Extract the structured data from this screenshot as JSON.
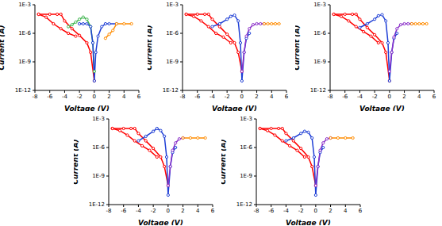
{
  "chart_data": [
    {
      "type": "line",
      "xlabel": "Voltage (V)",
      "ylabel": "Current (A)",
      "log": "y",
      "xlim": [
        -8,
        6
      ],
      "xticks": [
        -8,
        -6,
        -4,
        -2,
        0,
        2,
        4,
        6
      ],
      "ylim": [
        1e-12,
        0.001
      ],
      "yticks": [
        {
          "value": 1e-12,
          "label": "1E-12"
        },
        {
          "value": 1e-09,
          "label": "1E-9"
        },
        {
          "value": 1e-06,
          "label": "1E-6"
        },
        {
          "value": 0.001,
          "label": "1E-3"
        }
      ],
      "marker": "circle",
      "series": [
        {
          "color": "#ff0000",
          "x": [
            -7.5,
            -6,
            -5,
            -4.5,
            -4,
            -3,
            -2,
            -1,
            -0.5,
            0
          ],
          "values": [
            0.0001,
            0.0001,
            0.0001,
            0.0001,
            2e-05,
            3e-06,
            6e-07,
            1e-07,
            1e-08,
            1e-11
          ]
        },
        {
          "color": "#ff0000",
          "x": [
            -7.5,
            -6.5,
            -5.5,
            -4.5,
            -3.5,
            -2.5
          ],
          "values": [
            0.0001,
            5e-05,
            1e-05,
            3e-06,
            1e-06,
            5e-07
          ]
        },
        {
          "color": "#3cb44b",
          "x": [
            -3.5,
            -3,
            -2.5,
            -2,
            -1.5,
            -1,
            -0.5,
            -0.2,
            0
          ],
          "values": [
            5e-06,
            8e-06,
            1.5e-05,
            3e-05,
            5e-05,
            3e-05,
            5e-06,
            1e-07,
            1e-10
          ]
        },
        {
          "color": "#1f3fd6",
          "x": [
            -2,
            -1.5,
            -1,
            -0.5,
            -0.2,
            0,
            0.2,
            0.5,
            1,
            1.5,
            2,
            3
          ],
          "values": [
            1e-05,
            1e-05,
            1e-05,
            5e-06,
            1e-07,
            1e-11,
            1e-08,
            5e-07,
            5e-06,
            1e-05,
            1e-05,
            1e-05
          ]
        },
        {
          "color": "#ff8c00",
          "x": [
            1.5,
            2,
            2.5,
            3,
            4,
            5
          ],
          "values": [
            3e-07,
            8e-07,
            2e-06,
            1e-05,
            1e-05,
            1e-05
          ]
        }
      ]
    },
    {
      "type": "line",
      "xlabel": "Voltage (V)",
      "ylabel": "Current (A)",
      "log": "y",
      "xlim": [
        -8,
        6
      ],
      "xticks": [
        -8,
        -6,
        -4,
        -2,
        0,
        2,
        4,
        6
      ],
      "ylim": [
        1e-12,
        0.001
      ],
      "yticks": [
        {
          "value": 1e-12,
          "label": "1E-12"
        },
        {
          "value": 1e-09,
          "label": "1E-9"
        },
        {
          "value": 1e-06,
          "label": "1E-6"
        },
        {
          "value": 0.001,
          "label": "1E-3"
        }
      ],
      "marker": "circle",
      "series": [
        {
          "color": "#ff0000",
          "x": [
            -7.5,
            -6,
            -5,
            -4.5,
            -4,
            -3,
            -2,
            -1,
            -0.5,
            0
          ],
          "values": [
            0.0001,
            0.0001,
            0.0001,
            0.0001,
            3e-05,
            5e-06,
            8e-07,
            1e-07,
            1e-08,
            1e-10
          ]
        },
        {
          "color": "#ff0000",
          "x": [
            -7.5,
            -6.5,
            -5.5,
            -4.5,
            -3.5,
            -2.5,
            -1.5
          ],
          "values": [
            0.0001,
            6e-05,
            2e-05,
            5e-06,
            1e-06,
            4e-07,
            1e-07
          ]
        },
        {
          "color": "#1f3fd6",
          "x": [
            -4,
            -3,
            -2,
            -1.5,
            -1,
            -0.5,
            -0.2,
            0,
            0.3,
            0.6,
            1
          ],
          "values": [
            5e-06,
            1e-05,
            3e-05,
            6e-05,
            8e-05,
            2e-05,
            1e-07,
            1e-11,
            1e-08,
            3e-07,
            1e-06
          ]
        },
        {
          "color": "#8b2fc9",
          "x": [
            0,
            0.3,
            0.6,
            1,
            1.5,
            2,
            2.5,
            3
          ],
          "values": [
            1e-10,
            1e-08,
            5e-07,
            3e-06,
            8e-06,
            1e-05,
            1e-05,
            1e-05
          ]
        },
        {
          "color": "#ff8c00",
          "x": [
            3,
            3.5,
            4,
            4.5,
            5
          ],
          "values": [
            1e-05,
            1e-05,
            1e-05,
            1e-05,
            1e-05
          ]
        }
      ]
    },
    {
      "type": "line",
      "xlabel": "Voltage (V)",
      "ylabel": "Current (A)",
      "log": "y",
      "xlim": [
        -8,
        6
      ],
      "xticks": [
        -8,
        -6,
        -4,
        -2,
        0,
        2,
        4,
        6
      ],
      "ylim": [
        1e-12,
        0.001
      ],
      "yticks": [
        {
          "value": 1e-12,
          "label": "1E-12"
        },
        {
          "value": 1e-09,
          "label": "1E-9"
        },
        {
          "value": 1e-06,
          "label": "1E-6"
        },
        {
          "value": 0.001,
          "label": "1E-3"
        }
      ],
      "marker": "circle",
      "series": [
        {
          "color": "#ff0000",
          "x": [
            -7.5,
            -6,
            -5,
            -4.5,
            -4,
            -3,
            -2,
            -1,
            -0.5,
            0
          ],
          "values": [
            0.0001,
            0.0001,
            0.0001,
            0.0001,
            3e-05,
            4e-06,
            7e-07,
            1e-07,
            1e-08,
            1e-11
          ]
        },
        {
          "color": "#ff0000",
          "x": [
            -7.5,
            -6.5,
            -5.5,
            -4.5,
            -3.5,
            -2.5,
            -1.5
          ],
          "values": [
            0.0001,
            6e-05,
            2e-05,
            5e-06,
            1.5e-06,
            5e-07,
            1e-07
          ]
        },
        {
          "color": "#1f3fd6",
          "x": [
            -4,
            -3,
            -2,
            -1.5,
            -1,
            -0.5,
            -0.2,
            0,
            0.3,
            0.6,
            1
          ],
          "values": [
            4e-06,
            1e-05,
            3e-05,
            7e-05,
            9e-05,
            2e-05,
            1e-07,
            1e-11,
            1e-08,
            3e-07,
            1e-06
          ]
        },
        {
          "color": "#8b2fc9",
          "x": [
            0,
            0.3,
            0.6,
            1,
            1.5,
            2,
            2.5,
            3
          ],
          "values": [
            1e-10,
            1e-08,
            4e-07,
            3e-06,
            8e-06,
            1e-05,
            1e-05,
            1e-05
          ]
        },
        {
          "color": "#ff8c00",
          "x": [
            3,
            3.5,
            4,
            4.5,
            5
          ],
          "values": [
            1e-05,
            1e-05,
            1e-05,
            1e-05,
            1e-05
          ]
        }
      ]
    },
    {
      "type": "line",
      "xlabel": "Voltage (V)",
      "ylabel": "Current (A)",
      "log": "y",
      "xlim": [
        -8,
        6
      ],
      "xticks": [
        -8,
        -6,
        -4,
        -2,
        0,
        2,
        4,
        6
      ],
      "ylim": [
        1e-12,
        0.001
      ],
      "yticks": [
        {
          "value": 1e-12,
          "label": "1E-12"
        },
        {
          "value": 1e-09,
          "label": "1E-9"
        },
        {
          "value": 1e-06,
          "label": "1E-6"
        },
        {
          "value": 0.001,
          "label": "1E-3"
        }
      ],
      "marker": "circle",
      "series": [
        {
          "color": "#ff0000",
          "x": [
            -7.5,
            -6,
            -5,
            -4.5,
            -4,
            -3,
            -2,
            -1,
            -0.5,
            0
          ],
          "values": [
            0.0001,
            0.0001,
            0.0001,
            0.0001,
            3e-05,
            5e-06,
            8e-07,
            1e-07,
            1e-08,
            1e-10
          ]
        },
        {
          "color": "#ff0000",
          "x": [
            -7.5,
            -6.5,
            -5.5,
            -4.5,
            -3.5,
            -2.5,
            -1.5
          ],
          "values": [
            0.0001,
            6e-05,
            2e-05,
            5e-06,
            1.5e-06,
            5e-07,
            1e-07
          ]
        },
        {
          "color": "#1f3fd6",
          "x": [
            -4,
            -3,
            -2,
            -1.5,
            -1,
            -0.5,
            -0.2,
            0,
            0.3,
            0.6,
            1
          ],
          "values": [
            5e-06,
            1.5e-05,
            5e-05,
            0.0001,
            6e-05,
            1.5e-05,
            1e-07,
            1e-11,
            1e-08,
            3e-07,
            1e-06
          ]
        },
        {
          "color": "#8b2fc9",
          "x": [
            0,
            0.3,
            0.6,
            1,
            1.5,
            2
          ],
          "values": [
            1e-10,
            1e-08,
            5e-07,
            3e-06,
            8e-06,
            1e-05
          ]
        },
        {
          "color": "#ff8c00",
          "x": [
            2,
            3,
            4,
            5
          ],
          "values": [
            1e-05,
            1e-05,
            1e-05,
            1e-05
          ]
        }
      ]
    },
    {
      "type": "line",
      "xlabel": "Voltage (V)",
      "ylabel": "Current (A)",
      "log": "y",
      "xlim": [
        -8,
        6
      ],
      "xticks": [
        -8,
        -6,
        -4,
        -2,
        0,
        2,
        4,
        6
      ],
      "ylim": [
        1e-12,
        0.001
      ],
      "yticks": [
        {
          "value": 1e-12,
          "label": "1E-12"
        },
        {
          "value": 1e-09,
          "label": "1E-9"
        },
        {
          "value": 1e-06,
          "label": "1E-6"
        },
        {
          "value": 0.001,
          "label": "1E-3"
        }
      ],
      "marker": "circle",
      "series": [
        {
          "color": "#ff0000",
          "x": [
            -7.5,
            -6,
            -5,
            -4.5,
            -4,
            -3,
            -2,
            -1,
            -0.5,
            0
          ],
          "values": [
            0.0001,
            0.0001,
            0.0001,
            0.0001,
            3e-05,
            5e-06,
            8e-07,
            1e-07,
            1e-08,
            1e-10
          ]
        },
        {
          "color": "#ff0000",
          "x": [
            -7.5,
            -6.5,
            -5.5,
            -4.5,
            -3.5,
            -2.5,
            -1.5
          ],
          "values": [
            0.0001,
            6e-05,
            2e-05,
            5e-06,
            1.5e-06,
            5e-07,
            1e-07
          ]
        },
        {
          "color": "#1f3fd6",
          "x": [
            -4,
            -3,
            -2,
            -1.5,
            -1,
            -0.5,
            -0.2,
            0,
            0.3,
            0.6,
            1
          ],
          "values": [
            5e-06,
            1e-05,
            3e-05,
            5e-05,
            4e-05,
            1e-05,
            1e-07,
            1e-11,
            1e-08,
            3e-07,
            1e-06
          ]
        },
        {
          "color": "#8b2fc9",
          "x": [
            0,
            0.3,
            0.6,
            1,
            1.5,
            2
          ],
          "values": [
            1e-10,
            1e-08,
            5e-07,
            3e-06,
            8e-06,
            1e-05
          ]
        },
        {
          "color": "#ff8c00",
          "x": [
            2,
            3,
            4,
            5
          ],
          "values": [
            1e-05,
            1e-05,
            1e-05,
            1e-05
          ]
        }
      ]
    }
  ]
}
